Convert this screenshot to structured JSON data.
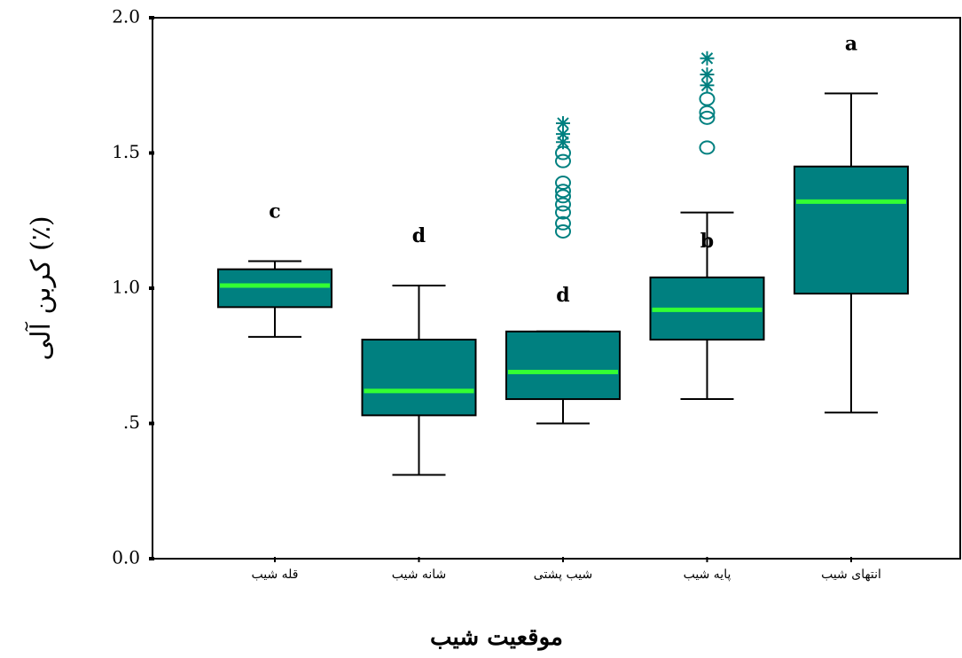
{
  "chart_data": {
    "type": "box",
    "x_label": "موقعیت شیب",
    "y_label": "کربن آلی (٪)",
    "categories": [
      "قله شیب",
      "شانه شیب",
      "شیب پشتی",
      "پایه شیب",
      "انتهای شیب"
    ],
    "group_labels": [
      "c",
      "d",
      "d",
      "b",
      "a"
    ],
    "box_color": "#008080",
    "median_color": "#33ff33",
    "outlier_color": "#008080",
    "whisker_low": [
      0.82,
      0.31,
      0.5,
      0.59,
      0.54
    ],
    "q1": [
      0.93,
      0.53,
      0.59,
      0.81,
      0.98
    ],
    "median": [
      1.01,
      0.62,
      0.69,
      0.92,
      1.32
    ],
    "q3": [
      1.07,
      0.81,
      0.84,
      1.04,
      1.45
    ],
    "whisker_high": [
      1.1,
      1.01,
      0.84,
      1.28,
      1.72
    ],
    "outliers": [
      [],
      [],
      [
        1.21,
        1.24,
        1.28,
        1.31,
        1.34,
        1.36,
        1.39,
        1.47,
        1.5
      ],
      [
        1.52,
        1.63,
        1.65,
        1.7
      ],
      []
    ],
    "extremes": [
      [],
      [],
      [
        1.54,
        1.57,
        1.61
      ],
      [
        1.75,
        1.79,
        1.85
      ],
      []
    ],
    "ylim": [
      0,
      2
    ],
    "yticks": [
      {
        "value": 0,
        "label": "0.0"
      },
      {
        "value": 0.5,
        "label": ".5"
      },
      {
        "value": 1,
        "label": "1.0"
      },
      {
        "value": 1.5,
        "label": "1.5"
      },
      {
        "value": 2,
        "label": "2.0"
      }
    ]
  }
}
